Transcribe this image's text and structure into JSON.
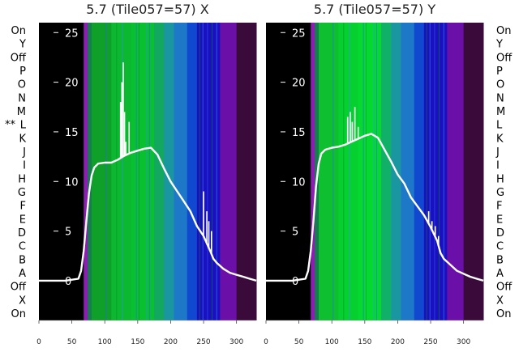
{
  "colors": {
    "background": "#ffffff",
    "trace": "#ffffff",
    "rowlabel": "#000000",
    "title": "#222222"
  },
  "row_labels": [
    "On",
    "Y",
    "Off",
    "P",
    "O",
    "N",
    "M",
    "L",
    "K",
    "J",
    "I",
    "H",
    "G",
    "F",
    "E",
    "D",
    "C",
    "B",
    "A",
    "Off",
    "X",
    "On"
  ],
  "left_marker": "**",
  "chart_data": [
    {
      "type": "heatmap",
      "title": "5.7 (Tile057=57) X",
      "xlabel": "",
      "ylabel": "",
      "xlim": [
        0,
        330
      ],
      "ylim": [
        -4,
        26
      ],
      "xticks": [
        0,
        50,
        100,
        150,
        200,
        250,
        300
      ],
      "yticks": [
        0,
        5,
        10,
        15,
        20,
        25
      ],
      "grid": false,
      "legend": "none",
      "band_colors": [
        {
          "x0": 0,
          "x1": 68,
          "color": "#000000"
        },
        {
          "x0": 68,
          "x1": 74,
          "color": "#8a1fb0"
        },
        {
          "x0": 74,
          "x1": 80,
          "color": "#1a7a52"
        },
        {
          "x0": 80,
          "x1": 110,
          "color": "#0fa02a"
        },
        {
          "x0": 110,
          "x1": 140,
          "color": "#0bb830"
        },
        {
          "x0": 140,
          "x1": 175,
          "color": "#08c030"
        },
        {
          "x0": 175,
          "x1": 190,
          "color": "#13a860"
        },
        {
          "x0": 190,
          "x1": 205,
          "color": "#1a96a0"
        },
        {
          "x0": 205,
          "x1": 225,
          "color": "#1e78c8"
        },
        {
          "x0": 225,
          "x1": 240,
          "color": "#1048d0"
        },
        {
          "x0": 240,
          "x1": 275,
          "color": "#1a10c0"
        },
        {
          "x0": 275,
          "x1": 300,
          "color": "#6a10a8"
        },
        {
          "x0": 300,
          "x1": 330,
          "color": "#3a0a3a"
        }
      ],
      "trace": {
        "x": [
          0,
          40,
          60,
          64,
          68,
          72,
          76,
          80,
          84,
          90,
          100,
          110,
          120,
          125,
          130,
          140,
          150,
          160,
          170,
          180,
          190,
          200,
          210,
          220,
          230,
          240,
          250,
          260,
          265,
          270,
          280,
          290,
          300,
          310,
          320,
          330
        ],
        "y": [
          0,
          0,
          0.2,
          1,
          3,
          6,
          8.8,
          10.6,
          11.4,
          11.8,
          11.9,
          11.9,
          12.2,
          12.4,
          12.6,
          12.9,
          13.1,
          13.3,
          13.4,
          12.7,
          11.3,
          10,
          9,
          8,
          7,
          5.5,
          4.5,
          3,
          2.2,
          1.8,
          1.2,
          0.8,
          0.6,
          0.4,
          0.2,
          0
        ],
        "spikes": [
          {
            "x": 124,
            "y": 18
          },
          {
            "x": 126,
            "y": 20
          },
          {
            "x": 128,
            "y": 22
          },
          {
            "x": 130,
            "y": 17
          },
          {
            "x": 132,
            "y": 14
          },
          {
            "x": 137,
            "y": 16
          },
          {
            "x": 250,
            "y": 9
          },
          {
            "x": 255,
            "y": 7
          },
          {
            "x": 258,
            "y": 6
          },
          {
            "x": 262,
            "y": 5
          }
        ]
      }
    },
    {
      "type": "heatmap",
      "title": "5.7 (Tile057=57) Y",
      "xlabel": "",
      "ylabel": "",
      "xlim": [
        0,
        330
      ],
      "ylim": [
        -4,
        26
      ],
      "xticks": [
        0,
        50,
        100,
        150,
        200,
        250,
        300
      ],
      "yticks": [
        0,
        5,
        10,
        15,
        20,
        25
      ],
      "grid": false,
      "legend": "none",
      "band_colors": [
        {
          "x0": 0,
          "x1": 68,
          "color": "#000000"
        },
        {
          "x0": 68,
          "x1": 74,
          "color": "#8a1fb0"
        },
        {
          "x0": 74,
          "x1": 80,
          "color": "#1a7a52"
        },
        {
          "x0": 80,
          "x1": 110,
          "color": "#0ec030"
        },
        {
          "x0": 110,
          "x1": 140,
          "color": "#06d030"
        },
        {
          "x0": 140,
          "x1": 175,
          "color": "#05d830"
        },
        {
          "x0": 175,
          "x1": 190,
          "color": "#10b068"
        },
        {
          "x0": 190,
          "x1": 205,
          "color": "#1a96a0"
        },
        {
          "x0": 205,
          "x1": 225,
          "color": "#1e78c8"
        },
        {
          "x0": 225,
          "x1": 240,
          "color": "#1048d0"
        },
        {
          "x0": 240,
          "x1": 275,
          "color": "#1a10c0"
        },
        {
          "x0": 275,
          "x1": 300,
          "color": "#6a10a8"
        },
        {
          "x0": 300,
          "x1": 330,
          "color": "#3a0a3a"
        }
      ],
      "trace": {
        "x": [
          0,
          40,
          60,
          64,
          68,
          72,
          76,
          80,
          84,
          90,
          100,
          110,
          120,
          130,
          140,
          150,
          160,
          170,
          180,
          190,
          200,
          210,
          220,
          230,
          240,
          250,
          260,
          265,
          270,
          280,
          290,
          300,
          310,
          320,
          330
        ],
        "y": [
          0,
          0,
          0.2,
          1,
          3,
          6,
          9.5,
          11.8,
          12.8,
          13.2,
          13.4,
          13.5,
          13.7,
          14,
          14.3,
          14.6,
          14.8,
          14.4,
          13.2,
          12,
          10.7,
          9.8,
          8.4,
          7.5,
          6.6,
          5.4,
          4,
          2.8,
          2.2,
          1.6,
          1,
          0.7,
          0.4,
          0.2,
          0
        ],
        "spikes": [
          {
            "x": 124,
            "y": 16.5
          },
          {
            "x": 128,
            "y": 17
          },
          {
            "x": 131,
            "y": 16
          },
          {
            "x": 135,
            "y": 17.5
          },
          {
            "x": 140,
            "y": 15.5
          },
          {
            "x": 247,
            "y": 7
          },
          {
            "x": 252,
            "y": 6
          },
          {
            "x": 257,
            "y": 5.5
          },
          {
            "x": 262,
            "y": 4.5
          }
        ]
      }
    }
  ]
}
